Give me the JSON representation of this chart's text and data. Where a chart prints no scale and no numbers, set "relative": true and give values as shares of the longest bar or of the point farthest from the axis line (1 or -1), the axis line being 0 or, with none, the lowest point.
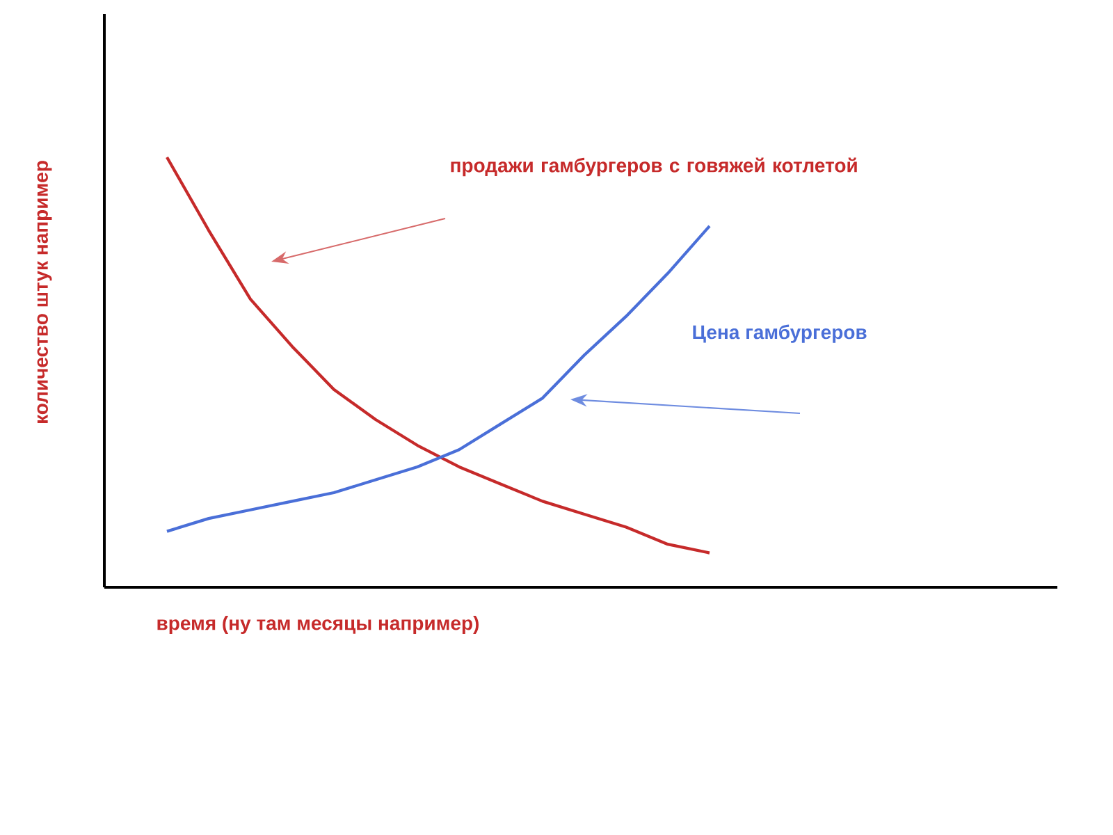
{
  "chart_data": {
    "type": "line",
    "relative": true,
    "xlabel": "время (ну там месяцы например)",
    "ylabel": "количество штук например",
    "categories": [
      null,
      null,
      null,
      null,
      null,
      null,
      null,
      null,
      null,
      null,
      null,
      null,
      null,
      null
    ],
    "series": [
      {
        "name": "продажи гамбургеров с говяжей котлетой",
        "color": "#c62a2a",
        "values": [
          1.0,
          0.83,
          0.67,
          0.56,
          0.46,
          0.39,
          0.33,
          0.28,
          0.24,
          0.2,
          0.17,
          0.14,
          0.1,
          0.08
        ]
      },
      {
        "name": "Цена гамбургеров",
        "color": "#4a6fd8",
        "values": [
          0.13,
          0.16,
          0.18,
          0.2,
          0.22,
          0.25,
          0.28,
          0.32,
          0.38,
          0.44,
          0.54,
          0.63,
          0.73,
          0.84
        ]
      }
    ]
  }
}
